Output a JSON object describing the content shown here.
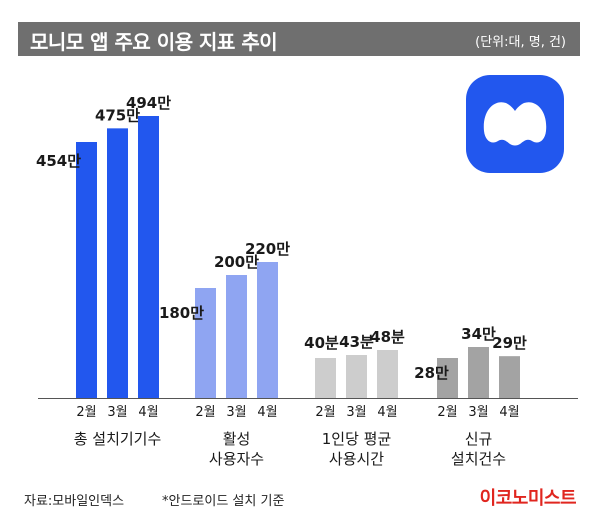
{
  "header": {
    "title": "모니모 앱 주요 이용 지표 추이",
    "unit": "(단위:대, 명, 건)"
  },
  "logo": {
    "icon": "monimo-app-icon",
    "bg_color": "#2257ee",
    "mark_color": "#ffffff"
  },
  "chart_data": {
    "type": "bar",
    "title": "모니모 앱 주요 이용 지표 추이",
    "unit": "(단위:대, 명, 건)",
    "grid": false,
    "legend": "none",
    "groups": [
      {
        "name": "총 설치기기수",
        "categories": [
          "2월",
          "3월",
          "4월"
        ],
        "values": [
          454,
          475,
          494
        ],
        "labels": [
          "454만",
          "475만",
          "494만"
        ],
        "colors": [
          "#2257ee",
          "#2257ee",
          "#2257ee"
        ]
      },
      {
        "name": "활성\n사용자수",
        "categories": [
          "2월",
          "3월",
          "4월"
        ],
        "values": [
          180,
          200,
          220
        ],
        "labels": [
          "180만",
          "200만",
          "220만"
        ],
        "colors": [
          "#8fa5f2",
          "#8fa5f2",
          "#8fa5f2"
        ]
      },
      {
        "name": "1인당 평균\n사용시간",
        "categories": [
          "2월",
          "3월",
          "4월"
        ],
        "values": [
          40,
          43,
          48
        ],
        "labels": [
          "40분",
          "43분",
          "48분"
        ],
        "colors": [
          "#cdcdcd",
          "#cdcdcd",
          "#cdcdcd"
        ]
      },
      {
        "name": "신규\n설치건수",
        "categories": [
          "2월",
          "3월",
          "4월"
        ],
        "values": [
          28,
          34,
          29
        ],
        "labels": [
          "28만",
          "34만",
          "29만"
        ],
        "colors": [
          "#a3a3a3",
          "#a3a3a3",
          "#a3a3a3"
        ]
      }
    ]
  },
  "footer": {
    "source": "자료:모바일인덱스",
    "note": "*안드로이드 설치 기준",
    "brand": "이코노미스트"
  }
}
